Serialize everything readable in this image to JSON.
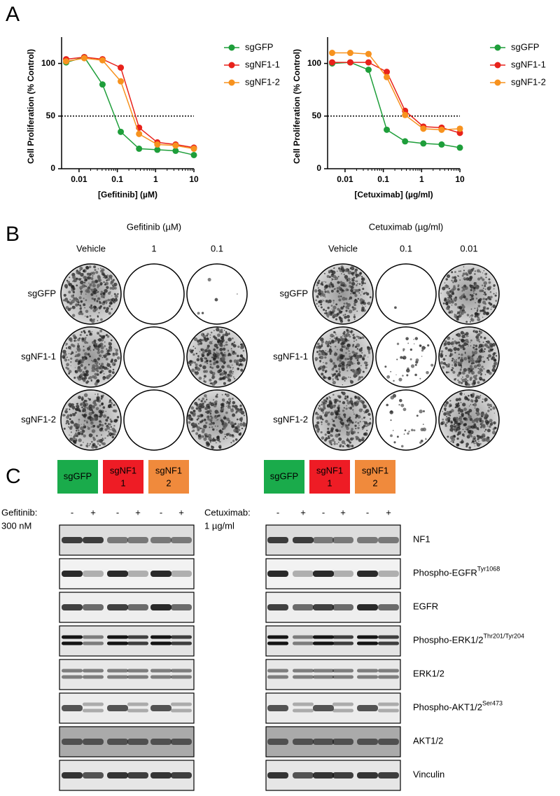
{
  "panel_labels": [
    "A",
    "B",
    "C"
  ],
  "chart_data": [
    {
      "type": "line",
      "x_label": "[Gefitinib] (µM)",
      "y_label": "Cell Proliferation (% Control)",
      "x": [
        0.0046,
        0.0137,
        0.041,
        0.123,
        0.37,
        1.11,
        3.33,
        10
      ],
      "log_x": true,
      "xlim": [
        0.0035,
        10
      ],
      "xticks": [
        0.01,
        0.1,
        1,
        10
      ],
      "ylim": [
        0,
        125
      ],
      "yticks": [
        0,
        50,
        100
      ],
      "reference_line": 50,
      "legend": "right",
      "series": [
        {
          "name": "sgGFP",
          "color": "#1e9e3a",
          "values": [
            101,
            106,
            80,
            35,
            19,
            18,
            17,
            13
          ]
        },
        {
          "name": "sgNF1-1",
          "color": "#e8221b",
          "values": [
            104,
            106,
            104,
            96,
            39,
            25,
            23,
            20
          ]
        },
        {
          "name": "sgNF1-2",
          "color": "#f7921e",
          "values": [
            102,
            105,
            103,
            83,
            33,
            23,
            22,
            19
          ]
        }
      ]
    },
    {
      "type": "line",
      "x_label": "[Cetuximab] (µg/ml)",
      "y_label": "Cell Proliferation (% Control)",
      "x": [
        0.0046,
        0.0137,
        0.041,
        0.123,
        0.37,
        1.11,
        3.33,
        10
      ],
      "log_x": true,
      "xlim": [
        0.0035,
        10
      ],
      "xticks": [
        0.01,
        0.1,
        1,
        10
      ],
      "ylim": [
        0,
        125
      ],
      "yticks": [
        0,
        50,
        100
      ],
      "reference_line": 50,
      "legend": "right",
      "series": [
        {
          "name": "sgGFP",
          "color": "#1e9e3a",
          "values": [
            100,
            101,
            94,
            37,
            26,
            24,
            23,
            20
          ]
        },
        {
          "name": "sgNF1-1",
          "color": "#e8221b",
          "values": [
            101,
            101,
            101,
            92,
            55,
            40,
            39,
            34
          ]
        },
        {
          "name": "sgNF1-2",
          "color": "#f7921e",
          "values": [
            110,
            110,
            109,
            87,
            51,
            38,
            37,
            38
          ]
        }
      ]
    }
  ],
  "colonies": [
    {
      "title": "Gefitinib (µM)",
      "columns": [
        "Vehicle",
        "1",
        "0.1"
      ],
      "rows": [
        "sgGFP",
        "sgNF1-1",
        "sgNF1-2"
      ]
    },
    {
      "title": "Cetuximab (µg/ml)",
      "columns": [
        "Vehicle",
        "0.1",
        "0.01"
      ],
      "rows": [
        "sgGFP",
        "sgNF1-1",
        "sgNF1-2"
      ]
    }
  ],
  "blots": {
    "groups": [
      {
        "line1": "sgGFP",
        "color": "#1aab4b"
      },
      {
        "line1": "sgNF1",
        "line2": "1",
        "color": "#ee1c25"
      },
      {
        "line1": "sgNF1",
        "line2": "2",
        "color": "#f08a3c"
      }
    ],
    "treatments": [
      {
        "label": "Gefitinib:",
        "dose": "300 nM",
        "lanes": [
          "-",
          "+",
          "-",
          "+",
          "-",
          "+"
        ]
      },
      {
        "label": "Cetuximab:",
        "dose": "1 µg/ml",
        "lanes": [
          "-",
          "+",
          "-",
          "+",
          "-",
          "+"
        ]
      }
    ],
    "proteins": [
      {
        "name": "NF1"
      },
      {
        "name": "Phospho-EGFR",
        "site": "Tyr1068"
      },
      {
        "name": "EGFR"
      },
      {
        "name": "Phospho-ERK1/2",
        "site": "Thr201/Tyr204"
      },
      {
        "name": "ERK1/2"
      },
      {
        "name": "Phospho-AKT1/2",
        "site": "Ser473"
      },
      {
        "name": "AKT1/2"
      },
      {
        "name": "Vinculin"
      }
    ]
  }
}
